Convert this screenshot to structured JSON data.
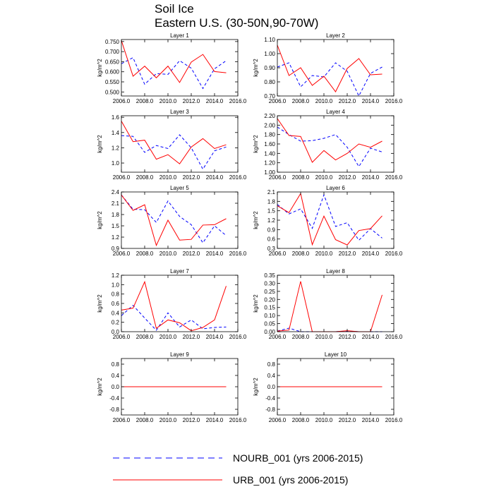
{
  "figure": {
    "title_line1": "Soil Ice",
    "title_line2": "Eastern U.S. (30-50N,90-70W)"
  },
  "legend": {
    "items": [
      {
        "label": "NOURB_001 (yrs 2006-2015)",
        "color": "#0000ff",
        "style": "dashed"
      },
      {
        "label": "URB_001 (yrs 2006-2015)",
        "color": "#ff0000",
        "style": "solid"
      }
    ]
  },
  "chart_data": [
    {
      "type": "line",
      "title": "Layer 1",
      "ylabel": "kg/m^2",
      "x": [
        2006,
        2007,
        2008,
        2009,
        2010,
        2011,
        2012,
        2013,
        2014,
        2015
      ],
      "xlim": [
        2006,
        2016
      ],
      "xticks": [
        "2006.0",
        "2008.0",
        "2010.0",
        "2012.0",
        "2014.0",
        "2016.0"
      ],
      "ylim": [
        0.48,
        0.76
      ],
      "yticks": [
        "0.500",
        "0.550",
        "0.600",
        "0.650",
        "0.700",
        "0.750"
      ],
      "series": [
        {
          "name": "NOURB_001 (yrs 2006-2015)",
          "color": "#0000ff",
          "dashed": true,
          "values": [
            0.64,
            0.67,
            0.538,
            0.591,
            0.587,
            0.655,
            0.618,
            0.517,
            0.615,
            0.655
          ]
        },
        {
          "name": "URB_001 (yrs 2006-2015)",
          "color": "#ff0000",
          "dashed": false,
          "values": [
            0.755,
            0.578,
            0.628,
            0.57,
            0.628,
            0.547,
            0.648,
            0.686,
            0.601,
            0.595
          ]
        }
      ]
    },
    {
      "type": "line",
      "title": "Layer 2",
      "ylabel": "kg/m^2",
      "x": [
        2006,
        2007,
        2008,
        2009,
        2010,
        2011,
        2012,
        2013,
        2014,
        2015
      ],
      "xlim": [
        2006,
        2016
      ],
      "xticks": [
        "2006.0",
        "2008.0",
        "2010.0",
        "2012.0",
        "2014.0",
        "2016.0"
      ],
      "ylim": [
        0.7,
        1.1
      ],
      "yticks": [
        "0.70",
        "0.80",
        "0.90",
        "1.00",
        "1.10"
      ],
      "series": [
        {
          "name": "NOURB_001 (yrs 2006-2015)",
          "color": "#0000ff",
          "dashed": true,
          "values": [
            0.905,
            0.935,
            0.765,
            0.845,
            0.835,
            0.935,
            0.875,
            0.7,
            0.86,
            0.905
          ]
        },
        {
          "name": "URB_001 (yrs 2006-2015)",
          "color": "#ff0000",
          "dashed": false,
          "values": [
            1.06,
            0.845,
            0.9,
            0.775,
            0.84,
            0.73,
            0.895,
            0.965,
            0.85,
            0.855
          ]
        }
      ]
    },
    {
      "type": "line",
      "title": "Layer 3",
      "ylabel": "kg/m^2",
      "x": [
        2006,
        2007,
        2008,
        2009,
        2010,
        2011,
        2012,
        2013,
        2014,
        2015
      ],
      "xlim": [
        2006,
        2016
      ],
      "xticks": [
        "2006.0",
        "2008.0",
        "2010.0",
        "2012.0",
        "2014.0",
        "2016.0"
      ],
      "ylim": [
        0.88,
        1.62
      ],
      "yticks": [
        "1.0",
        "1.2",
        "1.4",
        "1.6"
      ],
      "series": [
        {
          "name": "NOURB_001 (yrs 2006-2015)",
          "color": "#0000ff",
          "dashed": true,
          "values": [
            1.36,
            1.35,
            1.14,
            1.23,
            1.19,
            1.37,
            1.2,
            0.92,
            1.16,
            1.21
          ]
        },
        {
          "name": "URB_001 (yrs 2006-2015)",
          "color": "#ff0000",
          "dashed": false,
          "values": [
            1.55,
            1.28,
            1.3,
            1.05,
            1.11,
            0.99,
            1.21,
            1.32,
            1.19,
            1.24
          ]
        }
      ]
    },
    {
      "type": "line",
      "title": "Layer 4",
      "ylabel": "kg/m^2",
      "x": [
        2006,
        2007,
        2008,
        2009,
        2010,
        2011,
        2012,
        2013,
        2014,
        2015
      ],
      "xlim": [
        2006,
        2016
      ],
      "xticks": [
        "2006.0",
        "2008.0",
        "2010.0",
        "2012.0",
        "2014.0",
        "2016.0"
      ],
      "ylim": [
        1.0,
        2.2
      ],
      "yticks": [
        "1.00",
        "1.20",
        "1.40",
        "1.60",
        "1.80",
        "2.00",
        "2.20"
      ],
      "series": [
        {
          "name": "NOURB_001 (yrs 2006-2015)",
          "color": "#0000ff",
          "dashed": true,
          "values": [
            1.96,
            1.8,
            1.66,
            1.67,
            1.72,
            1.8,
            1.53,
            1.12,
            1.51,
            1.43
          ]
        },
        {
          "name": "URB_001 (yrs 2006-2015)",
          "color": "#ff0000",
          "dashed": false,
          "values": [
            2.14,
            1.78,
            1.76,
            1.21,
            1.46,
            1.26,
            1.4,
            1.6,
            1.53,
            1.66
          ]
        }
      ]
    },
    {
      "type": "line",
      "title": "Layer 5",
      "ylabel": "kg/m^2",
      "x": [
        2006,
        2007,
        2008,
        2009,
        2010,
        2011,
        2012,
        2013,
        2014,
        2015
      ],
      "xlim": [
        2006,
        2016
      ],
      "xticks": [
        "2006.0",
        "2008.0",
        "2010.0",
        "2012.0",
        "2014.0",
        "2016.0"
      ],
      "ylim": [
        0.9,
        2.4
      ],
      "yticks": [
        "0.9",
        "1.2",
        "1.5",
        "1.8",
        "2.1",
        "2.4"
      ],
      "series": [
        {
          "name": "NOURB_001 (yrs 2006-2015)",
          "color": "#0000ff",
          "dashed": true,
          "values": [
            2.32,
            1.94,
            1.93,
            1.59,
            2.16,
            1.75,
            1.53,
            1.05,
            1.5,
            1.24
          ]
        },
        {
          "name": "URB_001 (yrs 2006-2015)",
          "color": "#ff0000",
          "dashed": false,
          "values": [
            2.32,
            1.91,
            2.06,
            0.98,
            1.65,
            1.12,
            1.14,
            1.52,
            1.53,
            1.69
          ]
        }
      ]
    },
    {
      "type": "line",
      "title": "Layer 6",
      "ylabel": "kg/m^2",
      "x": [
        2006,
        2007,
        2008,
        2009,
        2010,
        2011,
        2012,
        2013,
        2014,
        2015
      ],
      "xlim": [
        2006,
        2016
      ],
      "xticks": [
        "2006.0",
        "2008.0",
        "2010.0",
        "2012.0",
        "2014.0",
        "2016.0"
      ],
      "ylim": [
        0.3,
        2.1
      ],
      "yticks": [
        "0.3",
        "0.6",
        "0.9",
        "1.2",
        "1.5",
        "1.8",
        "2.1"
      ],
      "series": [
        {
          "name": "NOURB_001 (yrs 2006-2015)",
          "color": "#0000ff",
          "dashed": true,
          "values": [
            1.7,
            1.4,
            1.56,
            0.94,
            2.01,
            1.0,
            1.12,
            0.56,
            0.93,
            0.63
          ]
        },
        {
          "name": "URB_001 (yrs 2006-2015)",
          "color": "#ff0000",
          "dashed": false,
          "values": [
            1.66,
            1.44,
            2.05,
            0.42,
            1.33,
            0.58,
            0.41,
            0.87,
            0.93,
            1.34
          ]
        }
      ]
    },
    {
      "type": "line",
      "title": "Layer 7",
      "ylabel": "kg/m^2",
      "x": [
        2006,
        2007,
        2008,
        2009,
        2010,
        2011,
        2012,
        2013,
        2014,
        2015
      ],
      "xlim": [
        2006,
        2016
      ],
      "xticks": [
        "2006.0",
        "2008.0",
        "2010.0",
        "2012.0",
        "2014.0",
        "2016.0"
      ],
      "ylim": [
        0.0,
        1.2
      ],
      "yticks": [
        "0.0",
        "0.2",
        "0.4",
        "0.6",
        "0.8",
        "1.0",
        "1.2"
      ],
      "series": [
        {
          "name": "NOURB_001 (yrs 2006-2015)",
          "color": "#0000ff",
          "dashed": true,
          "values": [
            0.34,
            0.56,
            0.29,
            0.03,
            0.4,
            0.1,
            0.25,
            0.06,
            0.09,
            0.1
          ]
        },
        {
          "name": "URB_001 (yrs 2006-2015)",
          "color": "#ff0000",
          "dashed": false,
          "values": [
            0.46,
            0.5,
            1.06,
            0.07,
            0.25,
            0.19,
            0.02,
            0.09,
            0.25,
            0.97
          ]
        }
      ]
    },
    {
      "type": "line",
      "title": "Layer 8",
      "ylabel": "kg/m^2",
      "x": [
        2006,
        2007,
        2008,
        2009,
        2010,
        2011,
        2012,
        2013,
        2014,
        2015
      ],
      "xlim": [
        2006,
        2016
      ],
      "xticks": [
        "2006.0",
        "2008.0",
        "2010.0",
        "2012.0",
        "2014.0",
        "2016.0"
      ],
      "ylim": [
        0.0,
        0.35
      ],
      "yticks": [
        "0.00",
        "0.05",
        "0.10",
        "0.15",
        "0.20",
        "0.25",
        "0.30",
        "0.35"
      ],
      "series": [
        {
          "name": "NOURB_001 (yrs 2006-2015)",
          "color": "#0000ff",
          "dashed": true,
          "values": [
            0.004,
            0.022,
            0.0,
            0.0,
            0.0,
            0.0,
            0.004,
            0.0,
            0.0,
            0.0
          ]
        },
        {
          "name": "URB_001 (yrs 2006-2015)",
          "color": "#ff0000",
          "dashed": false,
          "values": [
            0.004,
            0.01,
            0.312,
            0.0,
            0.0,
            0.0,
            0.006,
            0.0,
            0.0,
            0.228
          ]
        }
      ]
    },
    {
      "type": "line",
      "title": "Layer 9",
      "ylabel": "kg/m^2",
      "x": [
        2006,
        2007,
        2008,
        2009,
        2010,
        2011,
        2012,
        2013,
        2014,
        2015
      ],
      "xlim": [
        2006,
        2016
      ],
      "xticks": [
        "2006.0",
        "2008.0",
        "2010.0",
        "2012.0",
        "2014.0",
        "2016.0"
      ],
      "ylim": [
        -1.0,
        1.0
      ],
      "yticks": [
        "-0.8",
        "-0.4",
        "0.0",
        "0.4",
        "0.8"
      ],
      "series": [
        {
          "name": "NOURB_001 (yrs 2006-2015)",
          "color": "#0000ff",
          "dashed": true,
          "values": [
            0,
            0,
            0,
            0,
            0,
            0,
            0,
            0,
            0,
            0
          ]
        },
        {
          "name": "URB_001 (yrs 2006-2015)",
          "color": "#ff0000",
          "dashed": false,
          "values": [
            0,
            0,
            0,
            0,
            0,
            0,
            0,
            0,
            0,
            0
          ]
        }
      ]
    },
    {
      "type": "line",
      "title": "Layer 10",
      "ylabel": "kg/m^2",
      "x": [
        2006,
        2007,
        2008,
        2009,
        2010,
        2011,
        2012,
        2013,
        2014,
        2015
      ],
      "xlim": [
        2006,
        2016
      ],
      "xticks": [
        "2006.0",
        "2008.0",
        "2010.0",
        "2012.0",
        "2014.0",
        "2016.0"
      ],
      "ylim": [
        -1.0,
        1.0
      ],
      "yticks": [
        "-0.8",
        "-0.4",
        "0.0",
        "0.4",
        "0.8"
      ],
      "series": [
        {
          "name": "NOURB_001 (yrs 2006-2015)",
          "color": "#0000ff",
          "dashed": true,
          "values": [
            0,
            0,
            0,
            0,
            0,
            0,
            0,
            0,
            0,
            0
          ]
        },
        {
          "name": "URB_001 (yrs 2006-2015)",
          "color": "#ff0000",
          "dashed": false,
          "values": [
            0,
            0,
            0,
            0,
            0,
            0,
            0,
            0,
            0,
            0
          ]
        }
      ]
    }
  ]
}
